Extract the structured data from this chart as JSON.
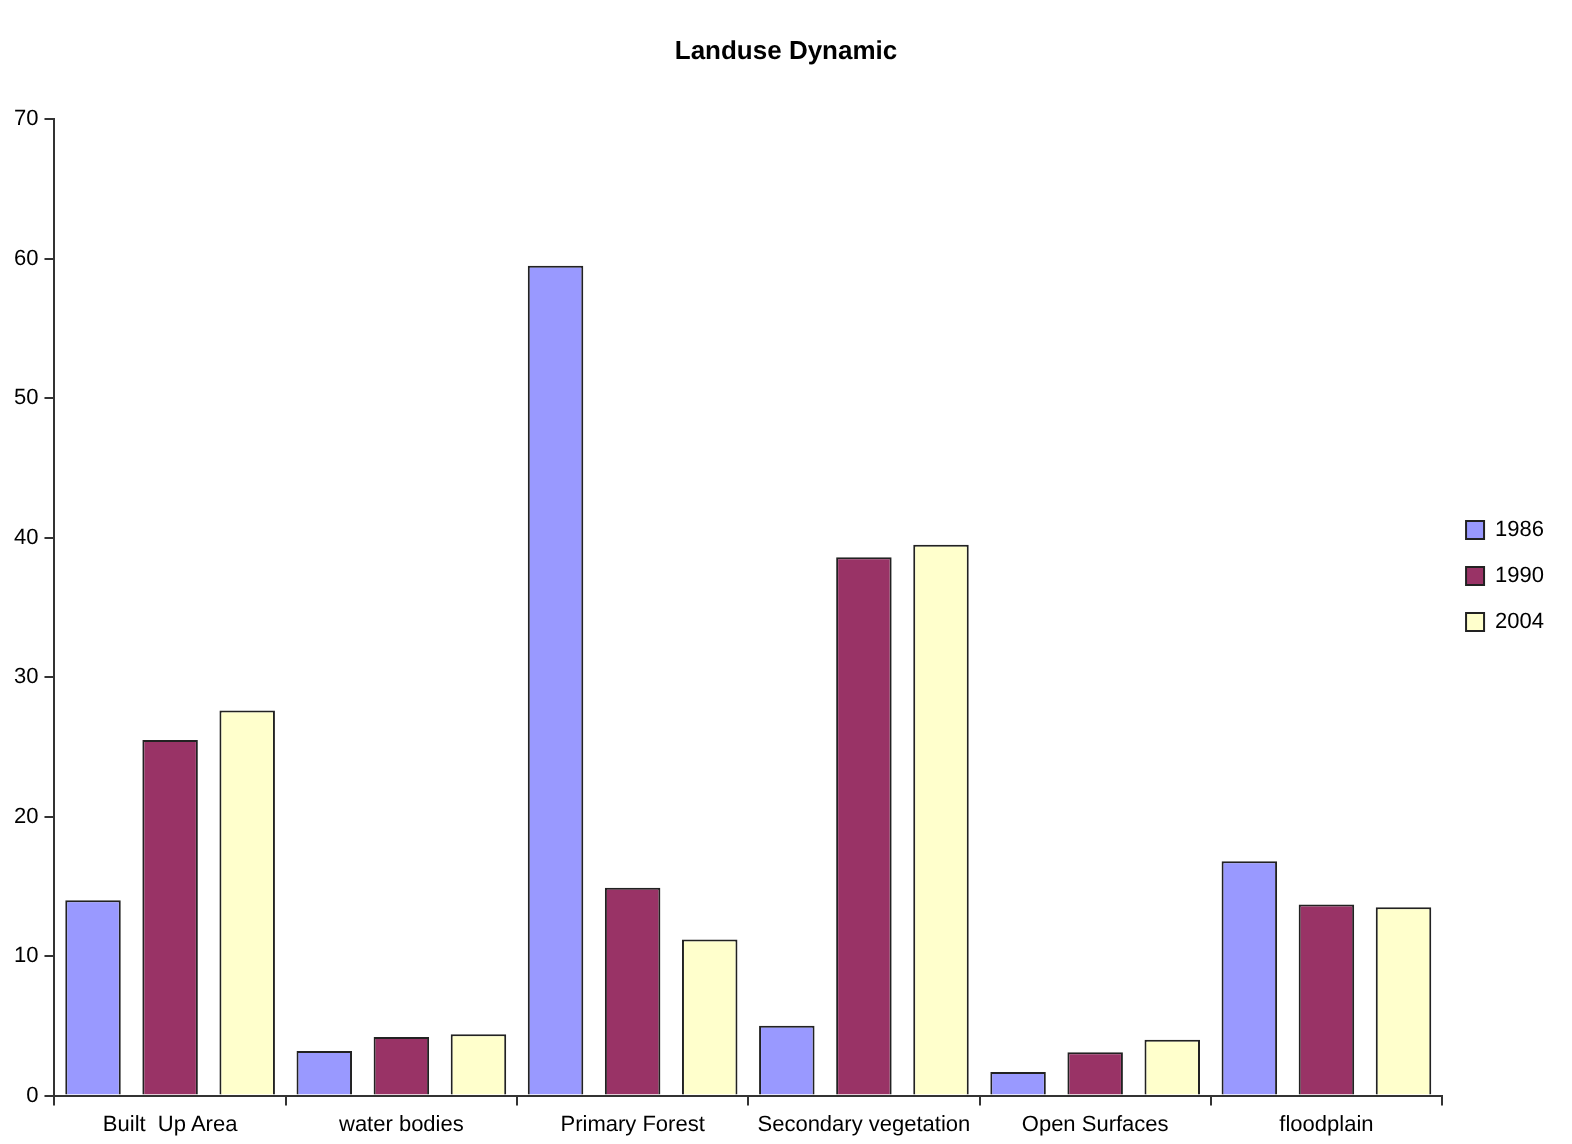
{
  "chart_data": {
    "type": "bar",
    "title": "Landuse Dynamic",
    "categories": [
      "Built  Up Area",
      "water bodies",
      "Primary Forest",
      "Secondary vegetation",
      "Open Surfaces",
      "floodplain"
    ],
    "series": [
      {
        "name": "1986",
        "color": "#9999ff",
        "values": [
          14.0,
          3.2,
          59.5,
          5.0,
          1.7,
          16.8
        ]
      },
      {
        "name": "1990",
        "color": "#993366",
        "values": [
          25.5,
          4.2,
          14.9,
          38.6,
          3.1,
          13.7
        ]
      },
      {
        "name": "2004",
        "color": "#ffffcc",
        "values": [
          27.6,
          4.4,
          11.2,
          39.5,
          4.0,
          13.5
        ]
      }
    ],
    "ylim": [
      0,
      70
    ],
    "yticks": [
      0,
      10,
      20,
      30,
      40,
      50,
      60,
      70
    ],
    "grid": false,
    "legend": "right"
  }
}
